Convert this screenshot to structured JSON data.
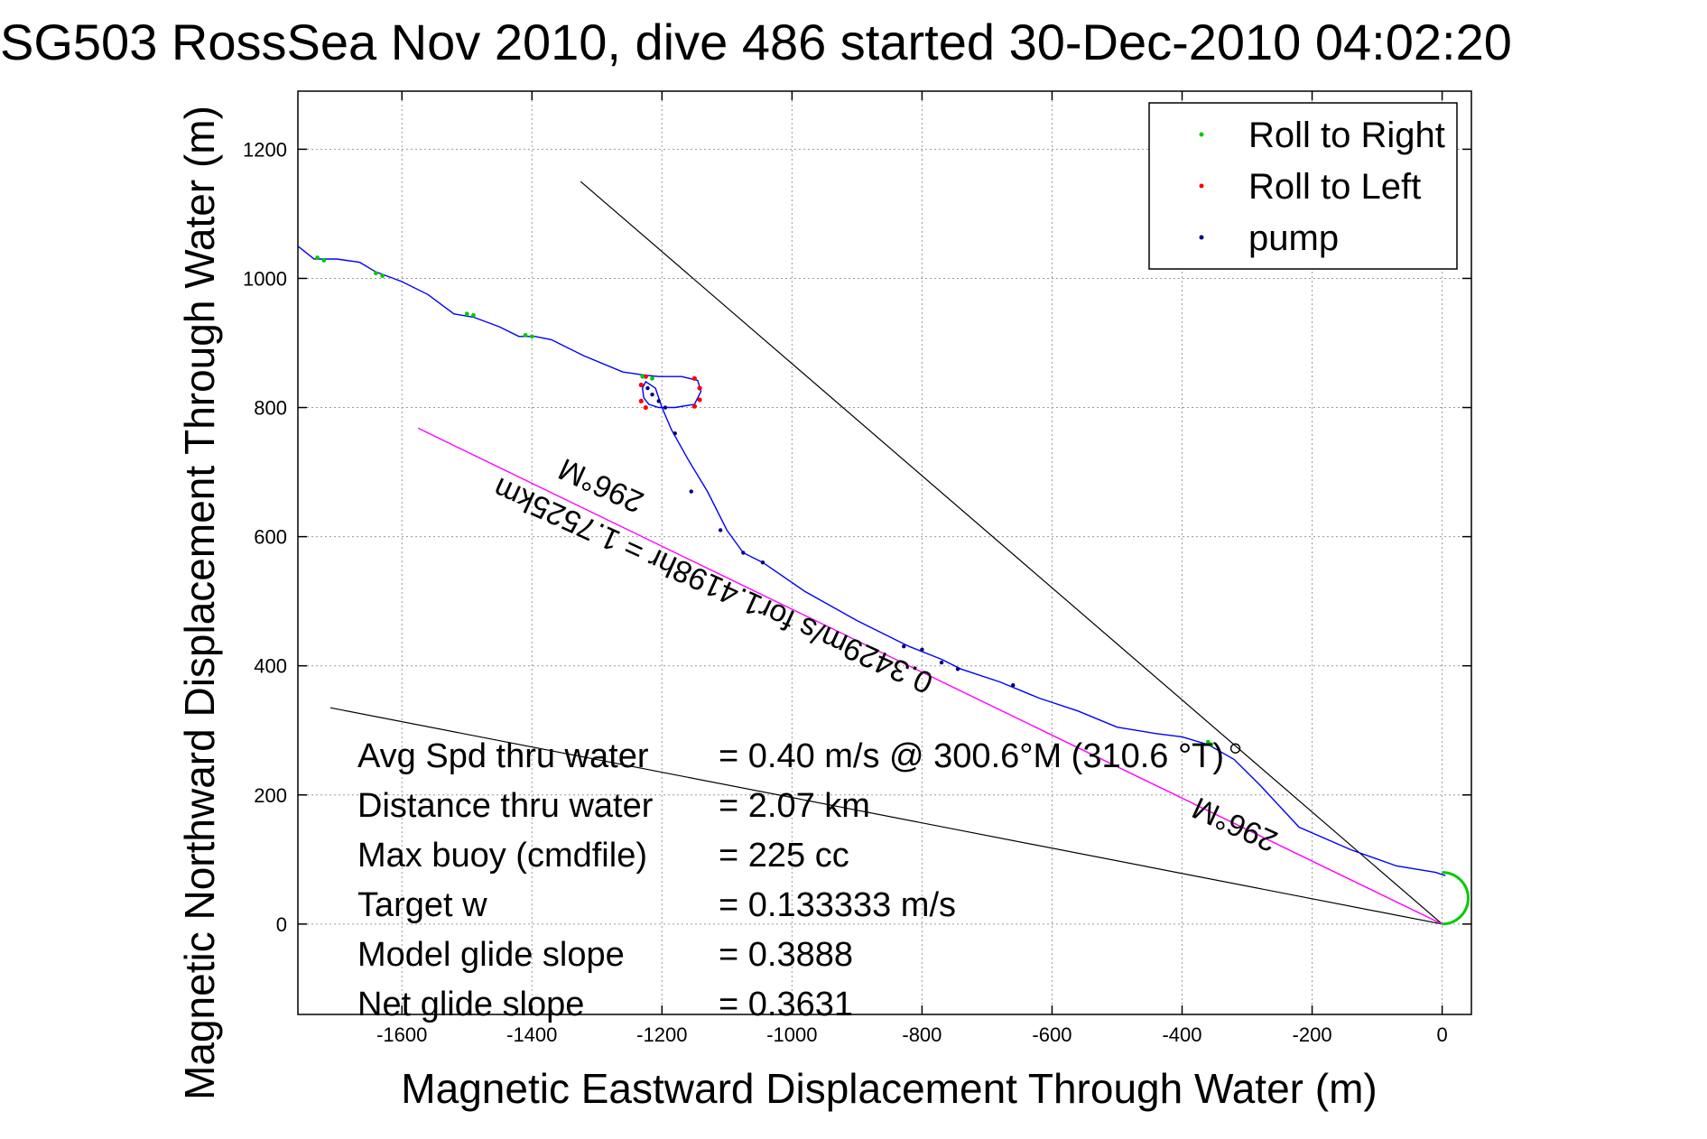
{
  "chart_data": {
    "type": "line",
    "title": "SG503 RossSea Nov 2010, dive 486 started 30-Dec-2010 04:02:20",
    "xlabel": "Magnetic Eastward Displacement Through Water (m)",
    "ylabel": "Magnetic Northward Displacement Through Water (m)",
    "xlim": [
      -1760,
      45
    ],
    "ylim": [
      -140,
      1290
    ],
    "xticks": [
      -1600,
      -1400,
      -1200,
      -1000,
      -800,
      -600,
      -400,
      -200,
      0
    ],
    "xtick_labels": [
      "-1600",
      "-1400",
      "-1200",
      "-1000",
      "-800",
      "-600",
      "-400",
      "-200",
      "0"
    ],
    "yticks": [
      0,
      200,
      400,
      600,
      800,
      1000,
      1200
    ],
    "ytick_labels": [
      "0",
      "200",
      "400",
      "600",
      "800",
      "1000",
      "1200"
    ],
    "grid": true,
    "legend_position": "top-right",
    "legend": [
      {
        "label": "Roll to Right",
        "color": "#00cc00"
      },
      {
        "label": "Roll to Left",
        "color": "#ff0000"
      },
      {
        "label": "pump",
        "color": "#000080"
      }
    ],
    "track": {
      "color": "#0000ff",
      "x": [
        -1760,
        -1735,
        -1700,
        -1665,
        -1640,
        -1600,
        -1560,
        -1520,
        -1490,
        -1450,
        -1420,
        -1395,
        -1370,
        -1320,
        -1260,
        -1225,
        -1205,
        -1170,
        -1145,
        -1140,
        -1150,
        -1180,
        -1205,
        -1220,
        -1228,
        -1230,
        -1225,
        -1210,
        -1200,
        -1185,
        -1160,
        -1130,
        -1100,
        -1075,
        -1045,
        -980,
        -900,
        -820,
        -770,
        -740,
        -680,
        -620,
        -560,
        -500,
        -440,
        -400,
        -360,
        -320,
        -280,
        -220,
        -140,
        -70,
        -10,
        5
      ],
      "y": [
        1050,
        1030,
        1030,
        1025,
        1010,
        995,
        975,
        945,
        940,
        925,
        910,
        910,
        905,
        880,
        855,
        850,
        848,
        848,
        842,
        825,
        805,
        800,
        800,
        805,
        815,
        830,
        840,
        830,
        800,
        765,
        720,
        670,
        610,
        575,
        560,
        515,
        470,
        430,
        410,
        395,
        375,
        350,
        330,
        305,
        295,
        290,
        278,
        255,
        215,
        150,
        115,
        90,
        80,
        75
      ]
    },
    "roll_right_arc": {
      "center": [
        0,
        40
      ],
      "radius": 40
    },
    "pump_points": {
      "x": [
        -1222,
        -1215,
        -1205,
        -1195,
        -1180,
        -1155,
        -1110,
        -1075,
        -1045,
        -828,
        -800,
        -770,
        -745,
        -660
      ],
      "y": [
        830,
        820,
        810,
        800,
        760,
        670,
        610,
        575,
        560,
        430,
        425,
        405,
        395,
        370
      ]
    },
    "roll_right_points": {
      "x": [
        -1730,
        -1720,
        -1640,
        -1630,
        -1500,
        -1490,
        -1410,
        -1400,
        -1230,
        -1215,
        -360,
        -355
      ],
      "y": [
        1032,
        1028,
        1008,
        1004,
        945,
        943,
        912,
        910,
        848,
        845,
        282,
        278
      ]
    },
    "roll_left_points": {
      "x": [
        -1225,
        -1232,
        -1232,
        -1225,
        -1150,
        -1142,
        -1142,
        -1150
      ],
      "y": [
        848,
        835,
        810,
        800,
        845,
        830,
        812,
        802
      ]
    },
    "heading_line": {
      "x": [
        -1325,
        0
      ],
      "y": [
        1150,
        0
      ],
      "color": "#000000"
    },
    "current_line": {
      "x": [
        -1710,
        0
      ],
      "y": [
        335,
        0
      ],
      "color": "#000000"
    },
    "dac_line": {
      "x": [
        -1575,
        0
      ],
      "y": [
        768,
        0
      ],
      "color": "#ff00ff"
    },
    "wp_marker": {
      "x": -318,
      "y": 272
    },
    "annotations": [
      {
        "text": "296°M",
        "x": -1225,
        "y": 665,
        "angle": 24.5
      },
      {
        "text": "0.3429m/s for1.4198hr = 1.7525km",
        "x": -780,
        "y": 385,
        "angle": 24.5
      },
      {
        "text": "296°M",
        "x": -250,
        "y": 140,
        "angle": 24.5
      }
    ]
  },
  "stats": [
    {
      "label": "Avg Spd thru water",
      "value": "=  0.40 m/s @ 300.6°M (310.6 °T)"
    },
    {
      "label": "Distance thru water",
      "value": "=  2.07 km"
    },
    {
      "label": "Max buoy (cmdfile)",
      "value": "= 225 cc"
    },
    {
      "label": "Target w",
      "value": "= 0.133333 m/s"
    },
    {
      "label": "Model glide slope",
      "value": "= 0.3888"
    },
    {
      "label": "Net glide slope",
      "value": "= 0.3631"
    }
  ]
}
